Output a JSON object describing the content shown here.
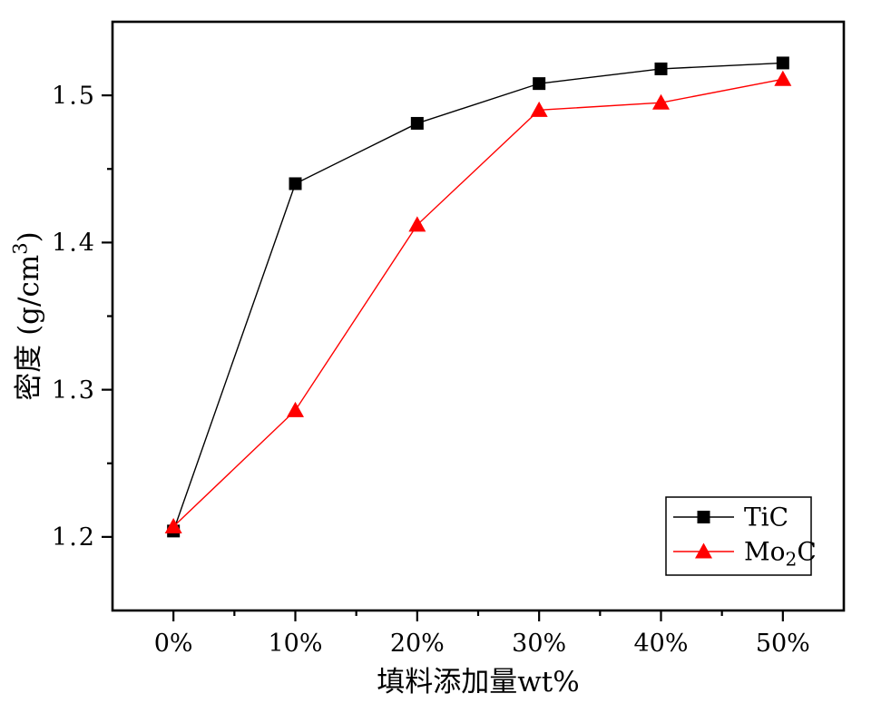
{
  "figure": {
    "background": "#ffffff",
    "accessible_title": "密度 vs 填料添加量 line chart"
  },
  "chart_data": {
    "type": "line",
    "title": "",
    "xlabel": "填料添加量wt%",
    "ylabel": "密度 (g/cm³)",
    "ylabel_parts": [
      {
        "text": "密度 (g/cm"
      },
      {
        "text": "3",
        "script": "sup"
      },
      {
        "text": ")"
      }
    ],
    "categories": [
      "0%",
      "10%",
      "20%",
      "30%",
      "40%",
      "50%"
    ],
    "x_values": [
      0,
      10,
      20,
      30,
      40,
      50
    ],
    "series": [
      {
        "name": "TiC",
        "name_parts": [
          {
            "text": "TiC"
          }
        ],
        "color": "#000000",
        "marker": "square",
        "values": [
          1.204,
          1.44,
          1.481,
          1.508,
          1.518,
          1.522
        ]
      },
      {
        "name": "Mo2C",
        "name_parts": [
          {
            "text": "Mo"
          },
          {
            "text": "2",
            "script": "sub"
          },
          {
            "text": "C"
          }
        ],
        "color": "#ff0000",
        "marker": "triangle",
        "values": [
          1.207,
          1.286,
          1.412,
          1.49,
          1.495,
          1.511
        ]
      }
    ],
    "xlim": [
      -5,
      55
    ],
    "ylim": [
      1.15,
      1.55
    ],
    "xticks_major": [
      0,
      10,
      20,
      30,
      40,
      50
    ],
    "xticks_minor": [
      5,
      15,
      25,
      35,
      45
    ],
    "yticks_major": [
      {
        "value": 1.2,
        "label": "1.2"
      },
      {
        "value": 1.3,
        "label": "1.3"
      },
      {
        "value": 1.4,
        "label": "1.4"
      },
      {
        "value": 1.5,
        "label": "1.5"
      }
    ],
    "yticks_minor": [
      1.25,
      1.35,
      1.45
    ],
    "grid": false,
    "legend": {
      "position": "inside-bottom-right",
      "border": true,
      "entries": [
        "TiC",
        "Mo2C"
      ]
    },
    "colors": {
      "axis": "#000000",
      "background": "#ffffff",
      "series_tic": "#000000",
      "series_mo2c": "#ff0000"
    }
  }
}
